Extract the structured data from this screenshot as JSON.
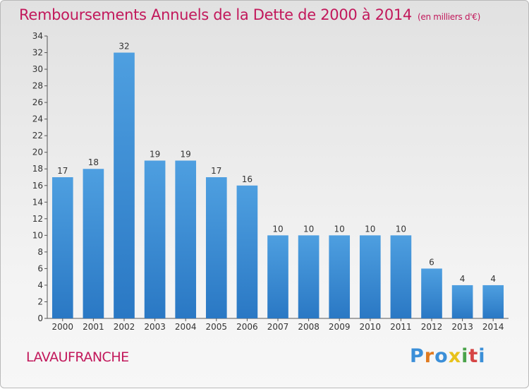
{
  "header": {
    "title": "Remboursements Annuels de la Dette de 2000 à 2014",
    "subtitle": "(en milliers d'€)"
  },
  "footer": {
    "place": "LAVAUFRANCHE",
    "logo": "Proxiti",
    "logo_colors": [
      "#3b8fd8",
      "#e07a1f",
      "#3b8fd8",
      "#e8c21b",
      "#4aa34a",
      "#d64545",
      "#3b8fd8"
    ]
  },
  "chart_data": {
    "type": "bar",
    "title": "Remboursements Annuels de la Dette de 2000 à 2014",
    "subtitle": "(en milliers d'€)",
    "categories": [
      "2000",
      "2001",
      "2002",
      "2003",
      "2004",
      "2005",
      "2006",
      "2007",
      "2008",
      "2009",
      "2010",
      "2011",
      "2012",
      "2013",
      "2014"
    ],
    "values": [
      17,
      18,
      32,
      19,
      19,
      17,
      16,
      10,
      10,
      10,
      10,
      10,
      6,
      4,
      4
    ],
    "ylim": [
      0,
      34
    ],
    "yticks": [
      0,
      2,
      4,
      6,
      8,
      10,
      12,
      14,
      16,
      18,
      20,
      22,
      24,
      26,
      28,
      30,
      32,
      34
    ],
    "grid": false,
    "data_labels": true,
    "bar_color": "#4e9fe0",
    "bar_color_dark": "#2a78c4"
  }
}
